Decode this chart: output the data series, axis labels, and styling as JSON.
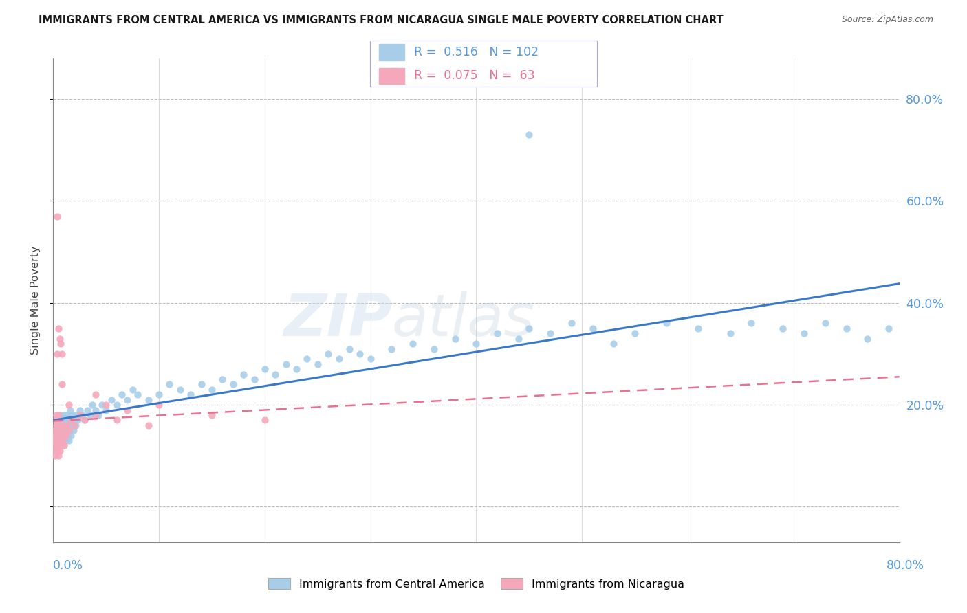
{
  "title": "IMMIGRANTS FROM CENTRAL AMERICA VS IMMIGRANTS FROM NICARAGUA SINGLE MALE POVERTY CORRELATION CHART",
  "source": "Source: ZipAtlas.com",
  "ylabel": "Single Male Poverty",
  "legend_bottom_label1": "Immigrants from Central America",
  "legend_bottom_label2": "Immigrants from Nicaragua",
  "color_blue": "#A8CDE8",
  "color_pink": "#F5A8BC",
  "color_blue_line": "#3A78C8",
  "color_pink_line": "#E87090",
  "color_blue_text": "#5599DD",
  "color_pink_text": "#E87090",
  "watermark_zip": "ZIP",
  "watermark_atlas": "atlas",
  "R1": 0.516,
  "N1": 102,
  "R2": 0.075,
  "N2": 63,
  "xmin": 0.0,
  "xmax": 0.8,
  "ymin": -0.07,
  "ymax": 0.88,
  "blue_x": [
    0.002,
    0.003,
    0.003,
    0.004,
    0.004,
    0.005,
    0.005,
    0.005,
    0.006,
    0.006,
    0.007,
    0.007,
    0.007,
    0.008,
    0.008,
    0.009,
    0.009,
    0.01,
    0.01,
    0.01,
    0.011,
    0.011,
    0.012,
    0.012,
    0.013,
    0.013,
    0.014,
    0.014,
    0.015,
    0.015,
    0.016,
    0.016,
    0.017,
    0.018,
    0.018,
    0.019,
    0.02,
    0.021,
    0.022,
    0.023,
    0.025,
    0.027,
    0.03,
    0.032,
    0.035,
    0.037,
    0.04,
    0.043,
    0.046,
    0.05,
    0.055,
    0.06,
    0.065,
    0.07,
    0.075,
    0.08,
    0.09,
    0.1,
    0.11,
    0.12,
    0.13,
    0.14,
    0.15,
    0.16,
    0.17,
    0.18,
    0.19,
    0.2,
    0.21,
    0.22,
    0.23,
    0.24,
    0.25,
    0.26,
    0.27,
    0.28,
    0.29,
    0.3,
    0.32,
    0.34,
    0.36,
    0.38,
    0.4,
    0.42,
    0.44,
    0.45,
    0.47,
    0.49,
    0.51,
    0.53,
    0.55,
    0.58,
    0.61,
    0.64,
    0.66,
    0.69,
    0.71,
    0.73,
    0.75,
    0.77,
    0.79,
    0.45
  ],
  "blue_y": [
    0.13,
    0.14,
    0.15,
    0.12,
    0.16,
    0.13,
    0.15,
    0.17,
    0.12,
    0.16,
    0.13,
    0.15,
    0.18,
    0.14,
    0.16,
    0.13,
    0.17,
    0.12,
    0.15,
    0.18,
    0.14,
    0.16,
    0.13,
    0.17,
    0.15,
    0.18,
    0.14,
    0.16,
    0.13,
    0.17,
    0.15,
    0.19,
    0.14,
    0.16,
    0.18,
    0.15,
    0.17,
    0.16,
    0.18,
    0.17,
    0.19,
    0.18,
    0.17,
    0.19,
    0.18,
    0.2,
    0.19,
    0.18,
    0.2,
    0.19,
    0.21,
    0.2,
    0.22,
    0.21,
    0.23,
    0.22,
    0.21,
    0.22,
    0.24,
    0.23,
    0.22,
    0.24,
    0.23,
    0.25,
    0.24,
    0.26,
    0.25,
    0.27,
    0.26,
    0.28,
    0.27,
    0.29,
    0.28,
    0.3,
    0.29,
    0.31,
    0.3,
    0.29,
    0.31,
    0.32,
    0.31,
    0.33,
    0.32,
    0.34,
    0.33,
    0.35,
    0.34,
    0.36,
    0.35,
    0.32,
    0.34,
    0.36,
    0.35,
    0.34,
    0.36,
    0.35,
    0.34,
    0.36,
    0.35,
    0.33,
    0.35,
    0.73
  ],
  "pink_x": [
    0.002,
    0.002,
    0.002,
    0.002,
    0.002,
    0.002,
    0.003,
    0.003,
    0.003,
    0.003,
    0.003,
    0.003,
    0.003,
    0.003,
    0.004,
    0.004,
    0.004,
    0.004,
    0.004,
    0.004,
    0.005,
    0.005,
    0.005,
    0.005,
    0.005,
    0.005,
    0.005,
    0.005,
    0.006,
    0.006,
    0.006,
    0.006,
    0.006,
    0.007,
    0.007,
    0.007,
    0.008,
    0.008,
    0.008,
    0.009,
    0.009,
    0.01,
    0.01,
    0.011,
    0.012,
    0.013,
    0.015,
    0.017,
    0.02,
    0.025,
    0.03,
    0.04,
    0.05,
    0.06,
    0.07,
    0.09,
    0.1,
    0.15,
    0.2,
    0.04,
    0.015,
    0.008,
    0.004
  ],
  "pink_y": [
    0.1,
    0.11,
    0.12,
    0.13,
    0.14,
    0.15,
    0.11,
    0.12,
    0.13,
    0.14,
    0.15,
    0.16,
    0.17,
    0.18,
    0.11,
    0.12,
    0.13,
    0.14,
    0.15,
    0.3,
    0.1,
    0.12,
    0.13,
    0.15,
    0.16,
    0.17,
    0.18,
    0.35,
    0.11,
    0.13,
    0.14,
    0.16,
    0.33,
    0.12,
    0.14,
    0.32,
    0.12,
    0.14,
    0.3,
    0.13,
    0.15,
    0.12,
    0.14,
    0.16,
    0.14,
    0.16,
    0.15,
    0.17,
    0.16,
    0.18,
    0.17,
    0.18,
    0.2,
    0.17,
    0.19,
    0.16,
    0.2,
    0.18,
    0.17,
    0.22,
    0.2,
    0.24,
    0.57
  ]
}
